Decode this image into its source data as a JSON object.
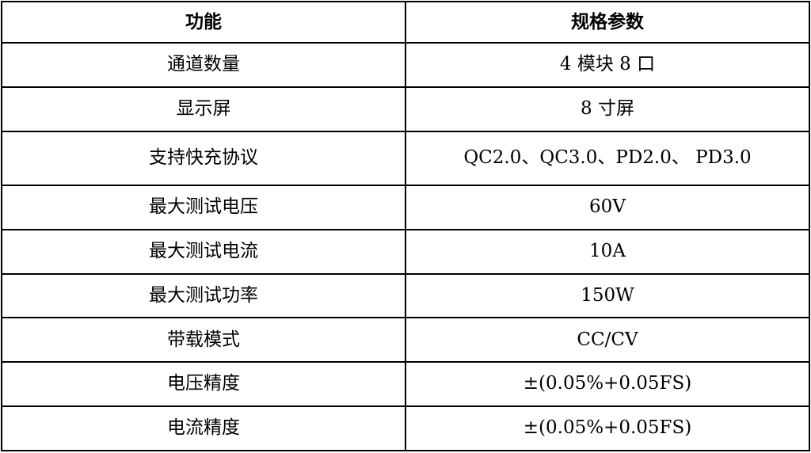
{
  "colors": {
    "border": "#000000",
    "text": "#000000",
    "background": "#ffffff"
  },
  "table": {
    "headers": {
      "function": "功能",
      "spec": "规格参数"
    },
    "rows": [
      {
        "label": "通道数量",
        "value": "4 模块 8 口",
        "tall": false
      },
      {
        "label": "显示屏",
        "value": "8 寸屏",
        "tall": false
      },
      {
        "label": "支持快充协议",
        "value": "QC2.0、QC3.0、PD2.0、 PD3.0",
        "tall": true
      },
      {
        "label": "最大测试电压",
        "value": "60V",
        "tall": false
      },
      {
        "label": "最大测试电流",
        "value": "10A",
        "tall": false
      },
      {
        "label": "最大测试功率",
        "value": "150W",
        "tall": false
      },
      {
        "label": "带载模式",
        "value": "CC/CV",
        "tall": false
      },
      {
        "label": "电压精度",
        "value": "±(0.05%+0.05FS)",
        "tall": false
      },
      {
        "label": "电流精度",
        "value": "±(0.05%+0.05FS)",
        "tall": false
      }
    ]
  }
}
